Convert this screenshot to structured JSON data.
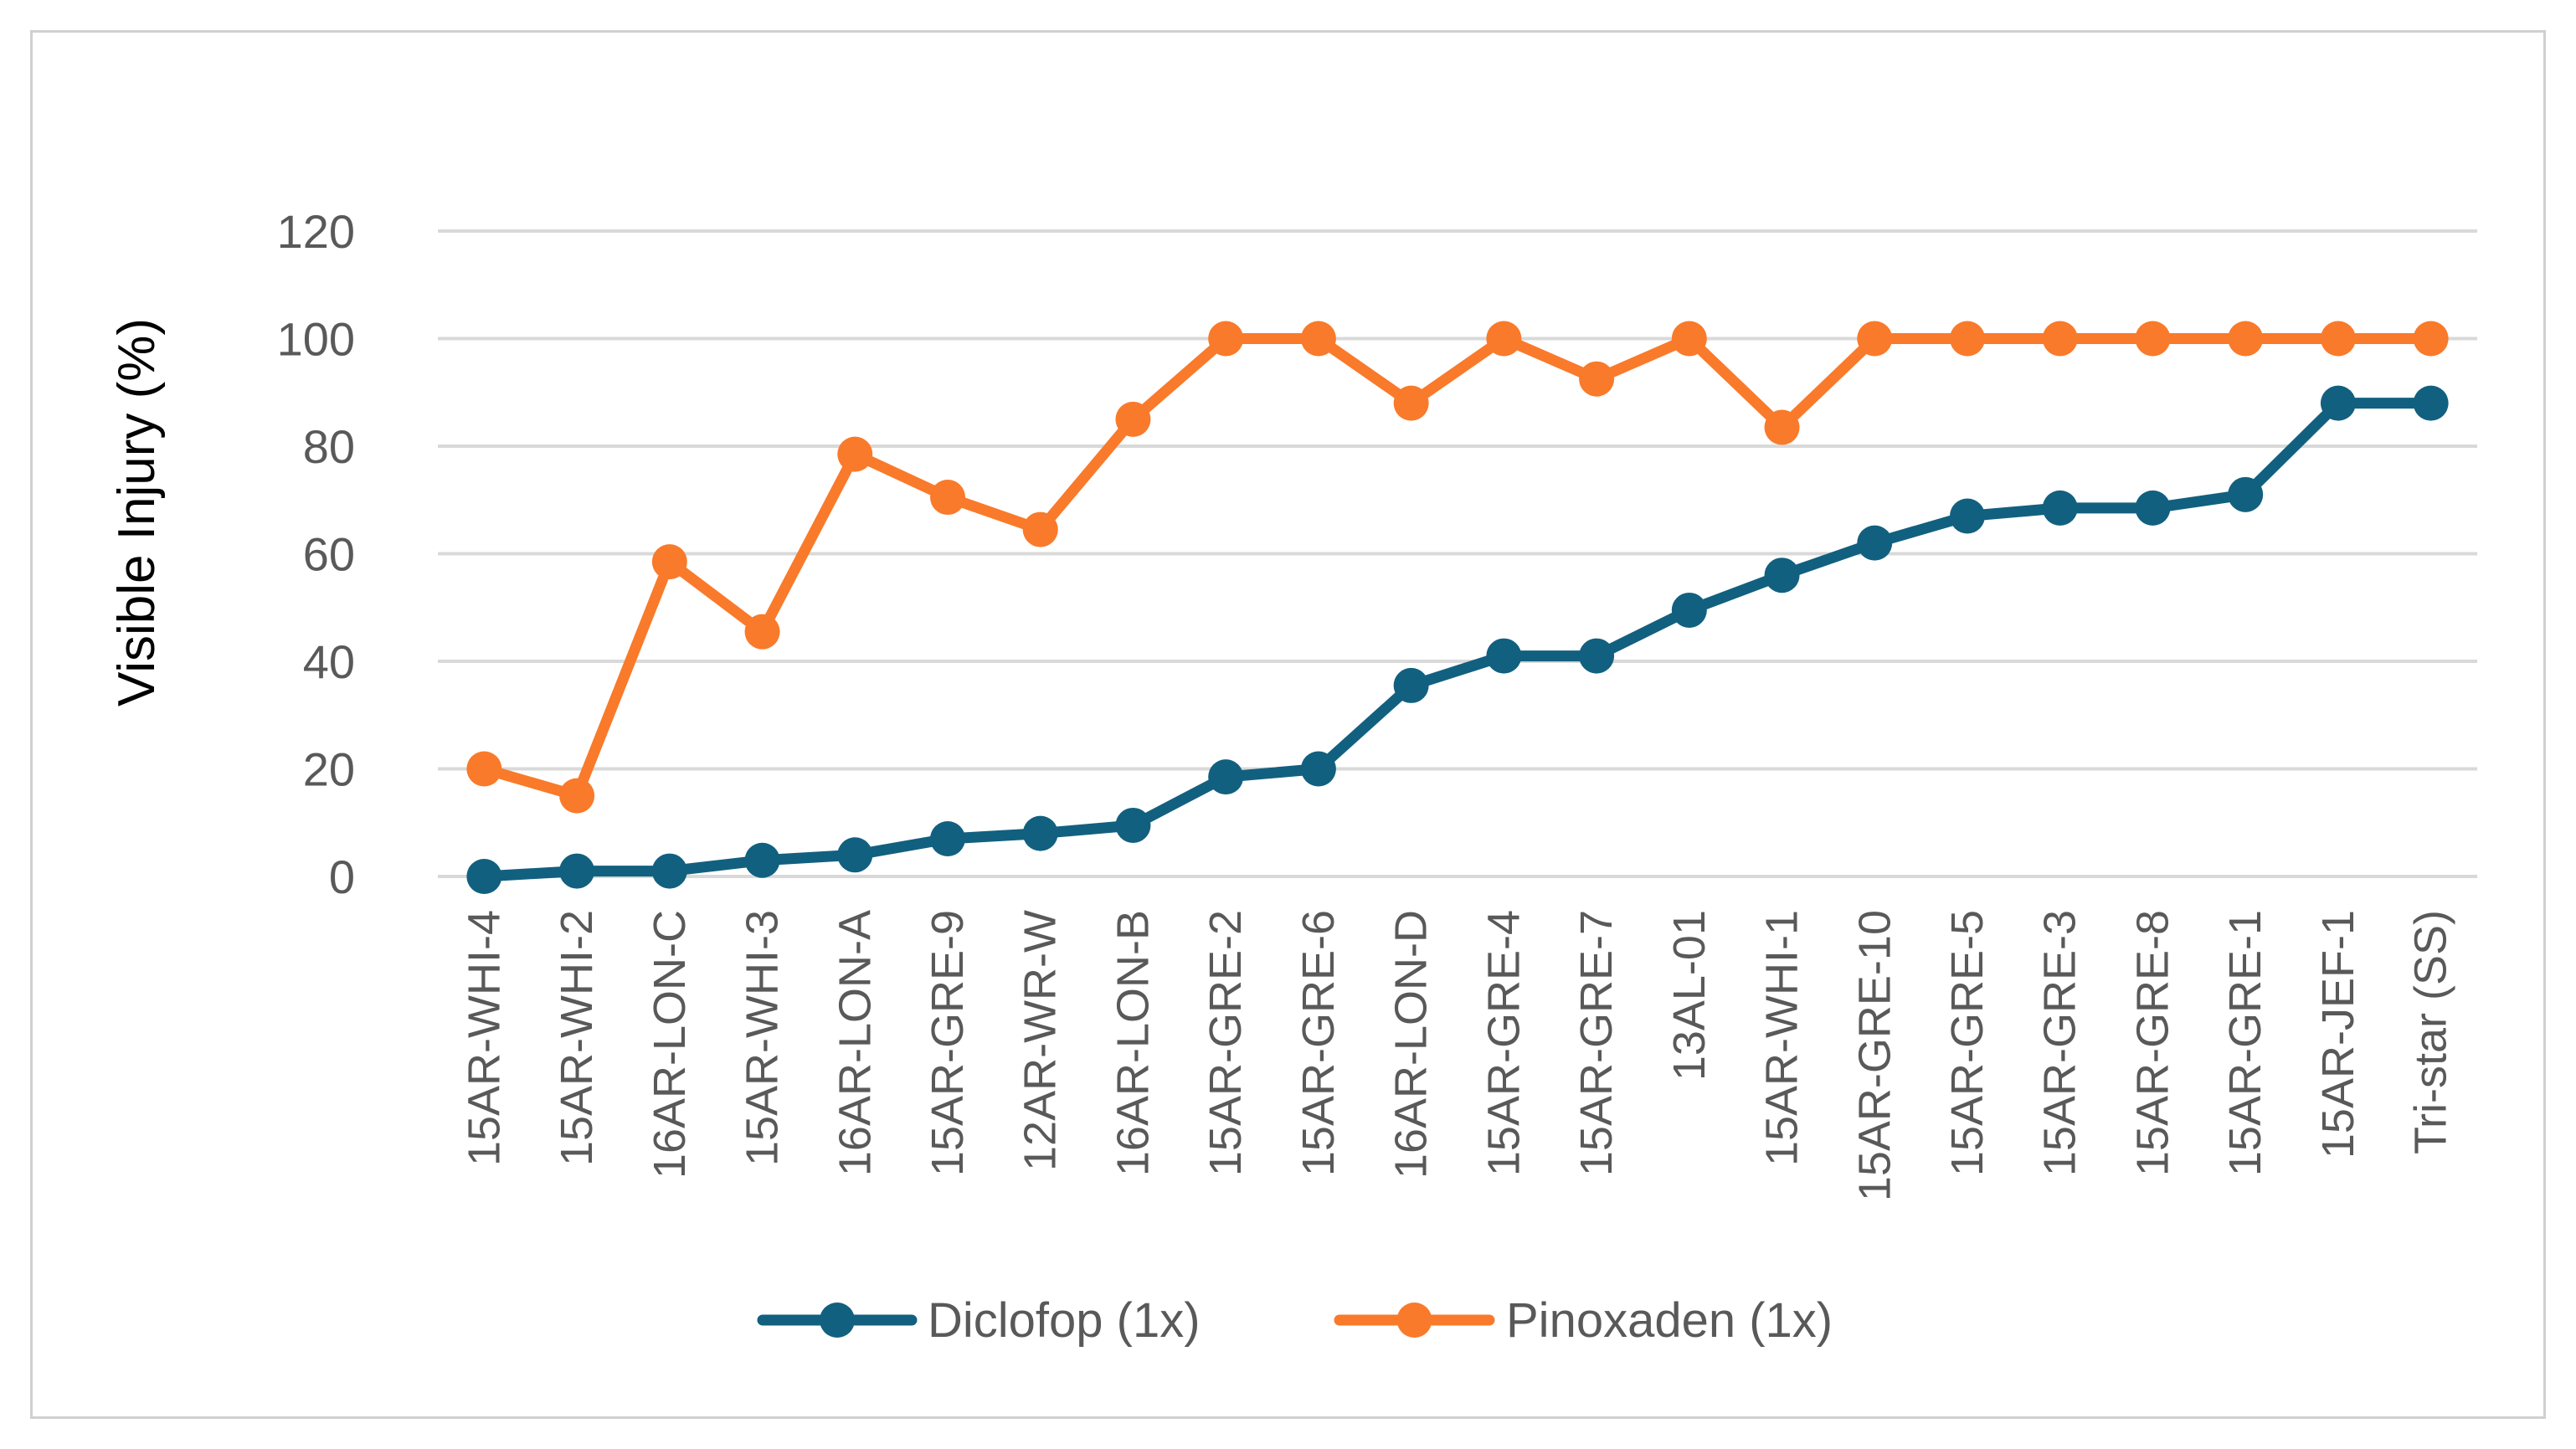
{
  "chart_data": {
    "type": "line",
    "title": "",
    "xlabel": "",
    "ylabel": "Visible Injury (%)",
    "ylim": [
      0,
      120
    ],
    "yticks": [
      0,
      20,
      40,
      60,
      80,
      100,
      120
    ],
    "grid": true,
    "legend_position": "bottom",
    "categories": [
      "15AR-WHI-4",
      "15AR-WHI-2",
      "16AR-LON-C",
      "15AR-WHI-3",
      "16AR-LON-A",
      "15AR-GRE-9",
      "12AR-WR-W",
      "16AR-LON-B",
      "15AR-GRE-2",
      "15AR-GRE-6",
      "16AR-LON-D",
      "15AR-GRE-4",
      "15AR-GRE-7",
      "13AL-01",
      "15AR-WHI-1",
      "15AR-GRE-10",
      "15AR-GRE-5",
      "15AR-GRE-3",
      "15AR-GRE-8",
      "15AR-GRE-1",
      "15AR-JEF-1",
      "Tri-star (SS)"
    ],
    "series": [
      {
        "name": "Diclofop (1x)",
        "color": "#12607f",
        "values": [
          0,
          1,
          1,
          3,
          4,
          7,
          8,
          9.5,
          18.5,
          20,
          35.5,
          41,
          41,
          49.5,
          56,
          62,
          67,
          68.5,
          68.5,
          71,
          88,
          88
        ]
      },
      {
        "name": "Pinoxaden (1x)",
        "color": "#f97a2a",
        "values": [
          20,
          15,
          58.5,
          45.5,
          78.5,
          70.5,
          64.5,
          85,
          100,
          100,
          88,
          100,
          92.5,
          100,
          83.5,
          100,
          100,
          100,
          100,
          100,
          100,
          100
        ]
      }
    ]
  }
}
